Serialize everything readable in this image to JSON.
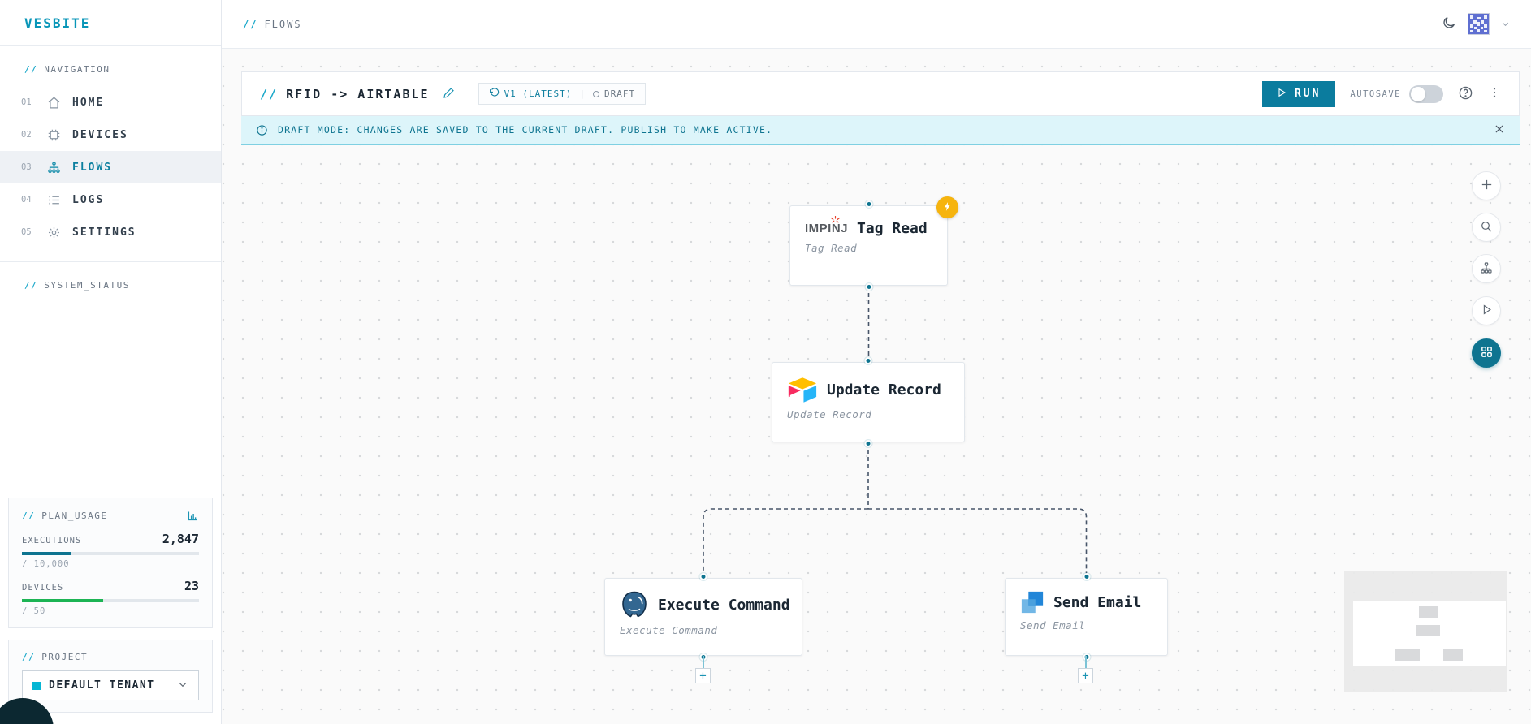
{
  "ui": {
    "slashes": "//"
  },
  "sidebar": {
    "logo": "VESBITE",
    "nav_heading": "NAVIGATION",
    "items": [
      {
        "num": "01",
        "label": "HOME"
      },
      {
        "num": "02",
        "label": "DEVICES"
      },
      {
        "num": "03",
        "label": "FLOWS"
      },
      {
        "num": "04",
        "label": "LOGS"
      },
      {
        "num": "05",
        "label": "SETTINGS"
      }
    ],
    "system_status_heading": "SYSTEM_STATUS",
    "plan_usage": {
      "heading": "PLAN_USAGE",
      "metrics": [
        {
          "label": "EXECUTIONS",
          "value": "2,847",
          "limit": "/ 10,000",
          "percent": 28,
          "color": "#0e7490"
        },
        {
          "label": "DEVICES",
          "value": "23",
          "limit": "/ 50",
          "percent": 46,
          "color": "#1cb454"
        }
      ]
    },
    "project": {
      "heading": "PROJECT",
      "selected": "DEFAULT TENANT",
      "swatch_color": "#06b6d4"
    }
  },
  "topbar": {
    "breadcrumb": "FLOWS"
  },
  "flow_header": {
    "title": "RFID -> AIRTABLE",
    "version_label": "V1 (LATEST)",
    "separator": "|",
    "status_label": "DRAFT",
    "run_label": "RUN",
    "autosave_label": "AUTOSAVE"
  },
  "banner": {
    "text": "DRAFT MODE: CHANGES ARE SAVED TO THE CURRENT DRAFT. PUBLISH TO MAKE ACTIVE."
  },
  "canvas": {
    "nodes": [
      {
        "title": "Tag Read",
        "subtitle": "Tag Read",
        "logo_text": "IMPINJ",
        "logo": "impinj-logo",
        "badge": "lightning-trigger"
      },
      {
        "title": "Update Record",
        "subtitle": "Update Record",
        "logo": "airtable-logo"
      },
      {
        "title": "Execute Command",
        "subtitle": "Execute Command",
        "logo": "postgresql-logo"
      },
      {
        "title": "Send Email",
        "subtitle": "Send Email",
        "logo": "sendgrid-logo"
      }
    ]
  },
  "colors": {
    "accent_teal": "#0e7490",
    "bright_cyan": "#18a7c9",
    "run_button": "#0b7c9e",
    "banner_bg": "#ddf5fa",
    "executions_bar": "#0e7490",
    "devices_bar": "#1cb454",
    "trigger_badge": "#f6b40e",
    "edge": "#475569"
  }
}
